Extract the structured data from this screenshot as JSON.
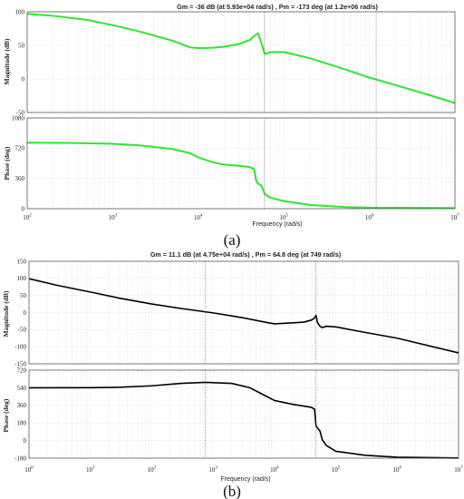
{
  "chart_data": [
    {
      "caption": "(a)",
      "title": "Gm = -36 dB (at 5.93e+04 rad/s) ,  Pm = -173 deg (at 1.2e+06 rad/s)",
      "xlabel": "Frequency  (rad/s)",
      "xscale": "log",
      "xlim": [
        100,
        10000000
      ],
      "xticks": [
        {
          "b": "10",
          "e": "2",
          "v": 100
        },
        {
          "b": "10",
          "e": "3",
          "v": 1000
        },
        {
          "b": "10",
          "e": "4",
          "v": 10000
        },
        {
          "b": "10",
          "e": "5",
          "v": 100000
        },
        {
          "b": "10",
          "e": "6",
          "v": 1000000
        },
        {
          "b": "10",
          "e": "7",
          "v": 10000000
        }
      ],
      "color": "#2ee62e",
      "magnitude": {
        "type": "line",
        "ylabel": "Magnitude (dB)",
        "ylim": [
          -50,
          100
        ],
        "yticks": [
          -50,
          0,
          50,
          100
        ],
        "x": [
          100,
          200,
          500,
          1000,
          2000,
          5000,
          8000,
          10000,
          15000,
          20000,
          30000,
          40000,
          45000,
          50000,
          55000,
          60000,
          70000,
          100000,
          200000,
          500000,
          1000000,
          2000000,
          5000000,
          10000000
        ],
        "y": [
          97,
          94,
          88,
          80,
          71,
          57,
          47,
          46,
          46.5,
          48,
          52,
          58,
          64,
          68,
          52,
          37,
          40,
          40,
          31,
          15,
          2,
          -9,
          -24,
          -36
        ]
      },
      "phase": {
        "type": "line",
        "ylabel": "Phase (deg)",
        "ylim": [
          0,
          1080
        ],
        "yticks": [
          0,
          360,
          720,
          1080
        ],
        "x": [
          100,
          300,
          1000,
          2000,
          5000,
          8000,
          10000,
          15000,
          20000,
          30000,
          40000,
          45000,
          47500,
          50000,
          55000,
          60000,
          70000,
          100000,
          200000,
          500000,
          1000000,
          10000000
        ],
        "y": [
          785,
          783,
          772,
          755,
          710,
          660,
          610,
          550,
          525,
          510,
          495,
          470,
          330,
          300,
          270,
          170,
          130,
          90,
          45,
          20,
          12,
          8
        ]
      },
      "markers": [
        {
          "x": 59300,
          "label": "Gm"
        },
        {
          "x": 1200000,
          "label": "Pm"
        }
      ]
    },
    {
      "caption": "(b)",
      "title": "Gm = 11.1 dB (at 4.75e+04 rad/s) ,  Pm = 64.8 deg (at 749 rad/s)",
      "xlabel": "Frequency  (rad/s)",
      "xscale": "log",
      "xlim": [
        1,
        10000000
      ],
      "xticks": [
        {
          "b": "10",
          "e": "0",
          "v": 1
        },
        {
          "b": "10",
          "e": "1",
          "v": 10
        },
        {
          "b": "10",
          "e": "2",
          "v": 100
        },
        {
          "b": "10",
          "e": "3",
          "v": 1000
        },
        {
          "b": "10",
          "e": "4",
          "v": 10000
        },
        {
          "b": "10",
          "e": "5",
          "v": 100000
        },
        {
          "b": "10",
          "e": "6",
          "v": 1000000
        },
        {
          "b": "10",
          "e": "7",
          "v": 10000000
        }
      ],
      "color": "#000000",
      "magnitude": {
        "type": "line",
        "ylabel": "Magnitude (dB)",
        "ylim": [
          -150,
          150
        ],
        "yticks": [
          -150,
          -100,
          -50,
          0,
          50,
          100,
          150
        ],
        "x": [
          1,
          3,
          10,
          30,
          100,
          300,
          1000,
          3000,
          8000,
          10000,
          20000,
          30000,
          40000,
          45000,
          47500,
          50000,
          55000,
          60000,
          70000,
          100000,
          300000,
          1000000,
          10000000
        ],
        "y": [
          99,
          79,
          60,
          42,
          25,
          12,
          -1,
          -15,
          -30,
          -33,
          -30,
          -28,
          -22,
          -16,
          -8,
          -28,
          -40,
          -44,
          -40,
          -42,
          -58,
          -75,
          -118
        ]
      },
      "phase": {
        "type": "line",
        "ylabel": "Phase (deg)",
        "ylim": [
          -180,
          720
        ],
        "yticks": [
          -180,
          0,
          180,
          360,
          540,
          720
        ],
        "x": [
          1,
          10,
          30,
          100,
          300,
          749,
          2000,
          4000,
          7000,
          10000,
          20000,
          40000,
          45000,
          47500,
          50000,
          55000,
          60000,
          70000,
          100000,
          300000,
          1000000,
          10000000
        ],
        "y": [
          540,
          541,
          545,
          560,
          585,
          595,
          585,
          540,
          460,
          410,
          370,
          340,
          320,
          150,
          130,
          100,
          10,
          -50,
          -110,
          -150,
          -170,
          -178
        ]
      },
      "markers": [
        {
          "x": 47500,
          "label": "Gm"
        },
        {
          "x": 749,
          "label": "Pm"
        }
      ]
    }
  ]
}
